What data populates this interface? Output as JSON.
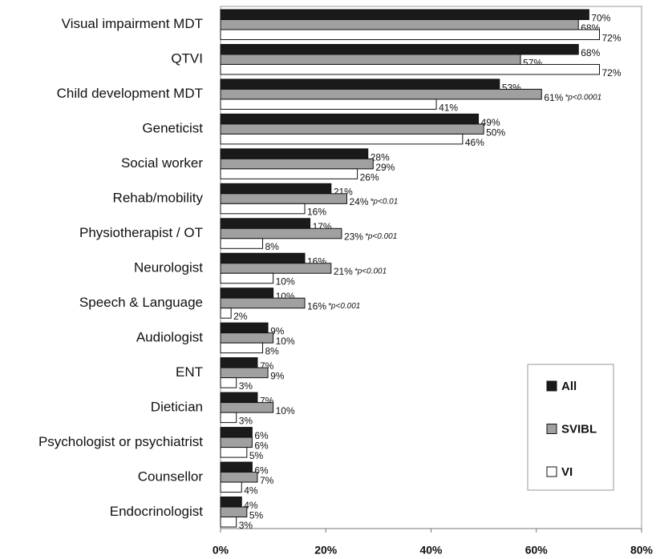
{
  "chart_data": {
    "type": "bar",
    "orientation": "horizontal",
    "categories": [
      "Visual impairment MDT",
      "QTVI",
      "Child development MDT",
      "Geneticist",
      "Social worker",
      "Rehab/mobility",
      "Physiotherapist / OT",
      "Neurologist",
      "Speech & Language",
      "Audiologist",
      "ENT",
      "Dietician",
      "Psychologist or psychiatrist",
      "Counsellor",
      "Endocrinologist"
    ],
    "series": [
      {
        "name": "All",
        "color": "#1a1a1a",
        "values": [
          70,
          68,
          53,
          49,
          28,
          21,
          17,
          16,
          10,
          9,
          7,
          7,
          6,
          6,
          4
        ],
        "value_labels": [
          "70%",
          "68%",
          "53%",
          "49%",
          "28%",
          "21%",
          "17%",
          "16%",
          "10%",
          "9%",
          "7%",
          "7%",
          "6%",
          "6%",
          "4%"
        ]
      },
      {
        "name": "SVIBL",
        "color": "#a0a0a0",
        "values": [
          68,
          57,
          61,
          50,
          29,
          24,
          23,
          21,
          16,
          10,
          9,
          10,
          6,
          7,
          5
        ],
        "value_labels": [
          "68%",
          "57%",
          "61%",
          "50%",
          "29%",
          "24%",
          "23%",
          "21%",
          "16%",
          "10%",
          "9%",
          "10%",
          "6%",
          "7%",
          "5%"
        ],
        "annotations": [
          null,
          null,
          "*p<0.0001",
          null,
          null,
          "*p<0.01",
          "*p<0.001",
          "*p<0.001",
          "*p<0.001",
          null,
          null,
          null,
          null,
          null,
          null
        ]
      },
      {
        "name": "VI",
        "color": "#ffffff",
        "values": [
          72,
          72,
          41,
          46,
          26,
          16,
          8,
          10,
          2,
          8,
          3,
          3,
          5,
          4,
          3
        ],
        "value_labels": [
          "72%",
          "72%",
          "41%",
          "46%",
          "26%",
          "16%",
          "8%",
          "10%",
          "2%",
          "8%",
          "3%",
          "3%",
          "5%",
          "4%",
          "3%"
        ]
      }
    ],
    "xlim": [
      0,
      80
    ],
    "xticks": [
      {
        "value": 0,
        "label": "0%"
      },
      {
        "value": 20,
        "label": "20%"
      },
      {
        "value": 40,
        "label": "40%"
      },
      {
        "value": 60,
        "label": "60%"
      },
      {
        "value": 80,
        "label": "80%"
      }
    ],
    "legend": "lower right"
  }
}
